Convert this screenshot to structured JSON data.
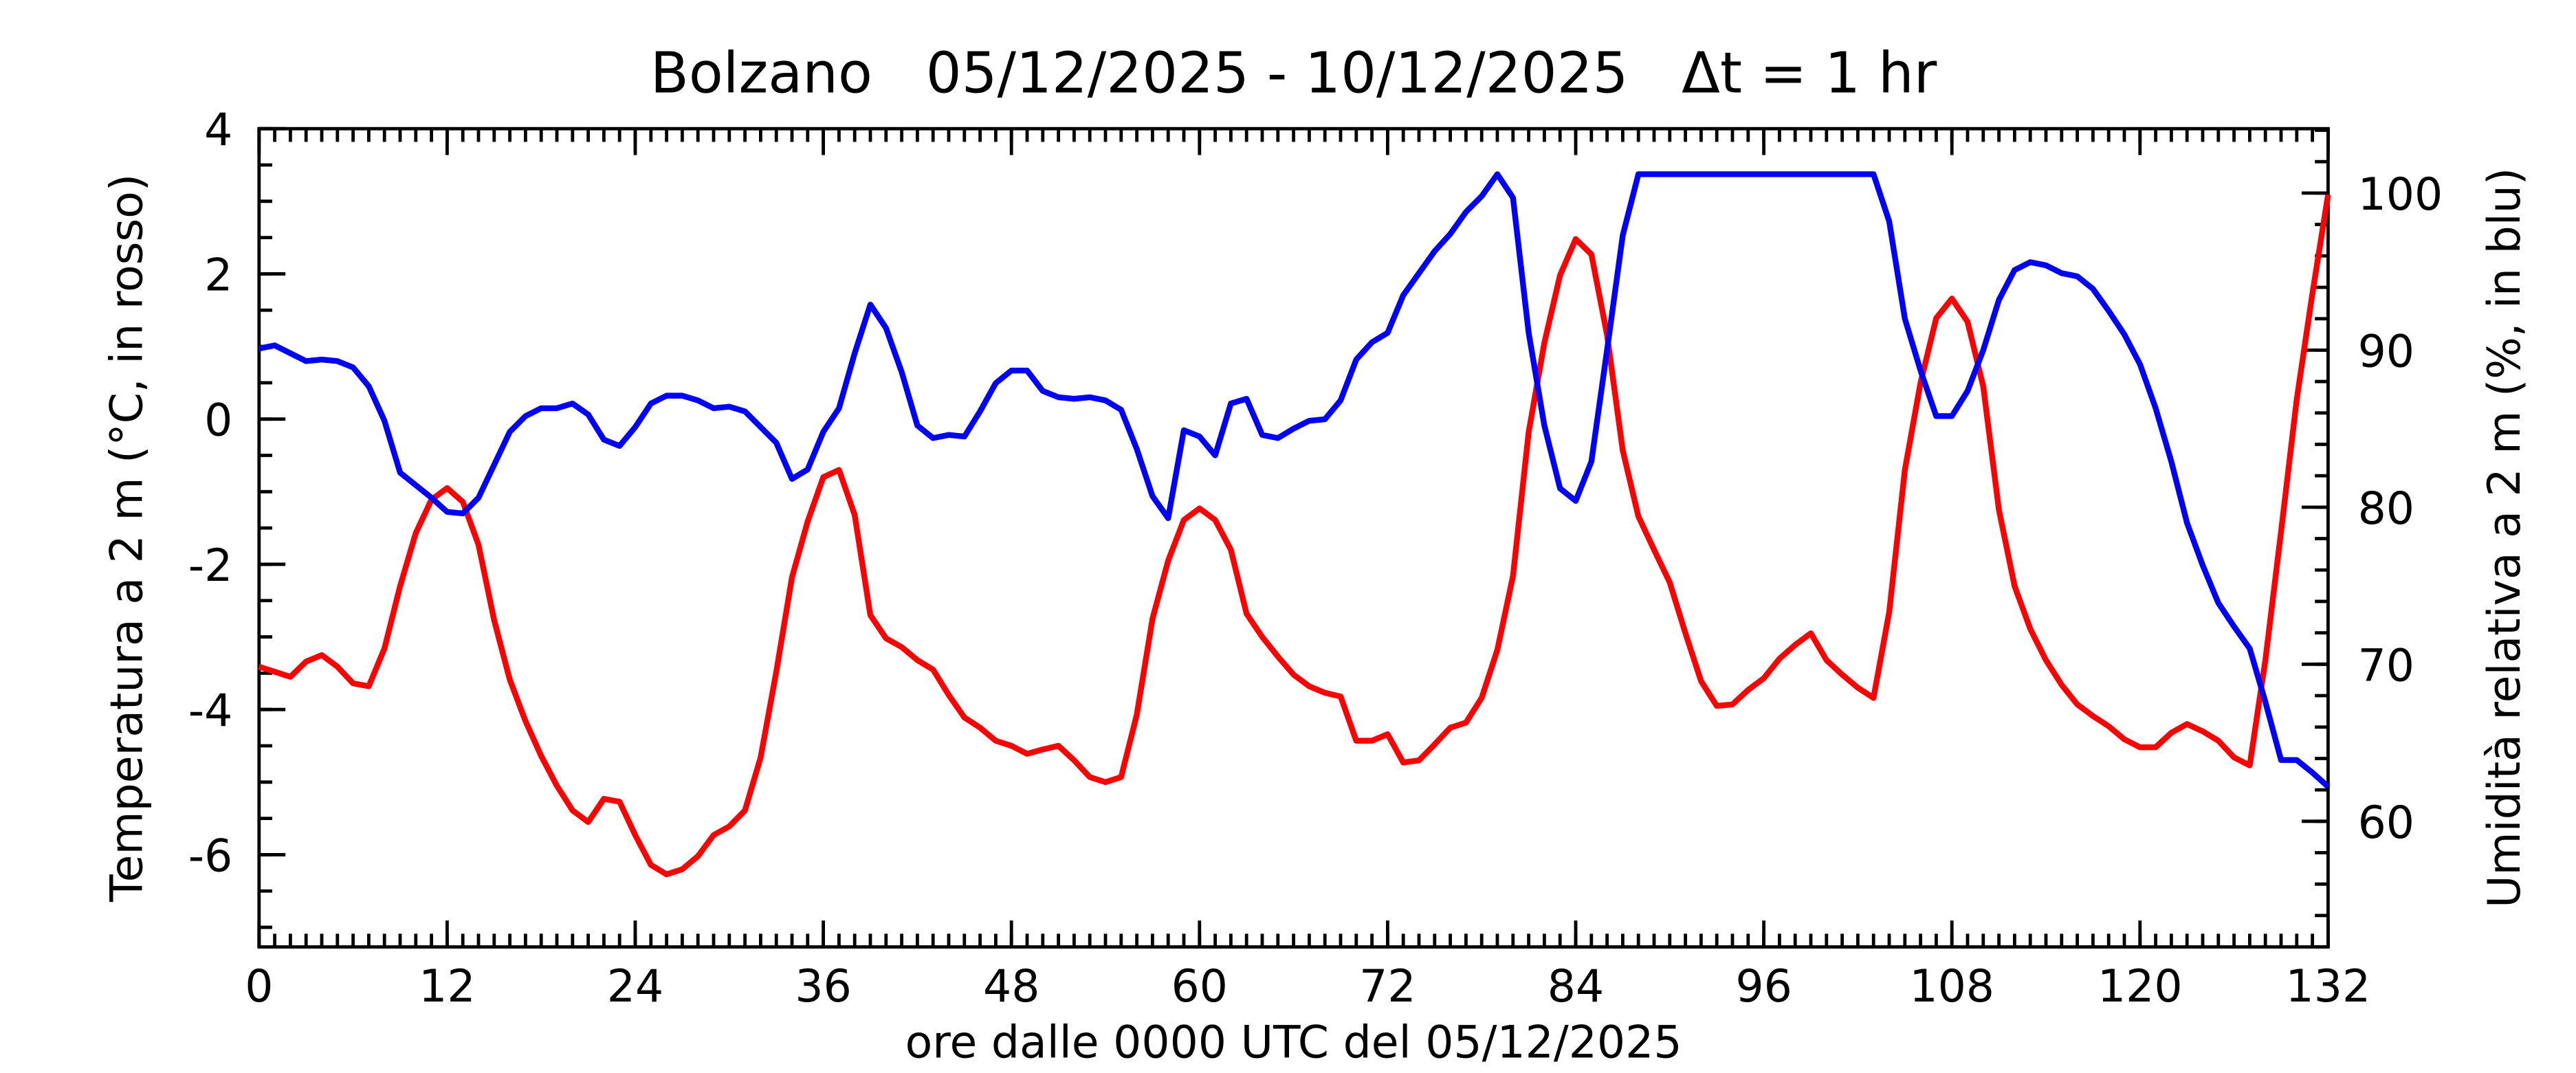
{
  "chart_data": {
    "type": "line",
    "title": "Bolzano   05/12/2025 - 10/12/2025   Δt = 1 hr",
    "xlabel": "ore dalle 0000 UTC del 05/12/2025",
    "ylabel": "Temperatura a 2 m (°C, in rosso)",
    "y2label": "Umidità relativa a 2 m (%, in blu)",
    "x": [
      0,
      1,
      2,
      3,
      4,
      5,
      6,
      7,
      8,
      9,
      10,
      11,
      12,
      13,
      14,
      15,
      16,
      17,
      18,
      19,
      20,
      21,
      22,
      23,
      24,
      25,
      26,
      27,
      28,
      29,
      30,
      31,
      32,
      33,
      34,
      35,
      36,
      37,
      38,
      39,
      40,
      41,
      42,
      43,
      44,
      45,
      46,
      47,
      48,
      49,
      50,
      51,
      52,
      53,
      54,
      55,
      56,
      57,
      58,
      59,
      60,
      61,
      62,
      63,
      64,
      65,
      66,
      67,
      68,
      69,
      70,
      71,
      72,
      73,
      74,
      75,
      76,
      77,
      78,
      79,
      80,
      81,
      82,
      83,
      84,
      85,
      86,
      87,
      88,
      89,
      90,
      91,
      92,
      93,
      94,
      95,
      96,
      97,
      98,
      99,
      100,
      101,
      102,
      103,
      104,
      105,
      106,
      107,
      108,
      109,
      110,
      111,
      112,
      113,
      114,
      115,
      116,
      117,
      118,
      119,
      120,
      121,
      122,
      123,
      124,
      125,
      126,
      127,
      128,
      129,
      130,
      131,
      132
    ],
    "series": [
      {
        "color": "#ff0000",
        "values": [
          -3.41,
          -3.48,
          -3.55,
          -3.34,
          -3.25,
          -3.41,
          -3.64,
          -3.68,
          -3.16,
          -2.3,
          -1.57,
          -1.11,
          -0.95,
          -1.14,
          -1.73,
          -2.77,
          -3.59,
          -4.16,
          -4.64,
          -5.05,
          -5.39,
          -5.55,
          -5.23,
          -5.27,
          -5.73,
          -6.14,
          -6.27,
          -6.2,
          -6.02,
          -5.73,
          -5.61,
          -5.39,
          -4.66,
          -3.48,
          -2.18,
          -1.41,
          -0.8,
          -0.7,
          -1.32,
          -2.7,
          -3.02,
          -3.14,
          -3.32,
          -3.45,
          -3.8,
          -4.11,
          -4.25,
          -4.43,
          -4.5,
          -4.61,
          -4.55,
          -4.5,
          -4.7,
          -4.93,
          -5.0,
          -4.93,
          -4.07,
          -2.75,
          -1.95,
          -1.39,
          -1.23,
          -1.39,
          -1.8,
          -2.68,
          -3.0,
          -3.27,
          -3.52,
          -3.68,
          -3.77,
          -3.82,
          -4.43,
          -4.43,
          -4.34,
          -4.73,
          -4.7,
          -4.48,
          -4.25,
          -4.18,
          -3.84,
          -3.18,
          -2.16,
          -0.18,
          1.05,
          1.98,
          2.48,
          2.27,
          1.16,
          -0.43,
          -1.34,
          -1.8,
          -2.25,
          -2.95,
          -3.61,
          -3.95,
          -3.93,
          -3.73,
          -3.57,
          -3.3,
          -3.11,
          -2.95,
          -3.32,
          -3.52,
          -3.7,
          -3.84,
          -2.66,
          -0.7,
          0.5,
          1.39,
          1.66,
          1.34,
          0.45,
          -1.25,
          -2.3,
          -2.89,
          -3.32,
          -3.66,
          -3.93,
          -4.09,
          -4.23,
          -4.41,
          -4.52,
          -4.52,
          -4.32,
          -4.2,
          -4.3,
          -4.43,
          -4.66,
          -4.77,
          -3.32,
          -1.55,
          0.27,
          1.73,
          3.09
        ]
      },
      {
        "color": "#0000ff",
        "axis": "y2",
        "values": [
          90.1,
          90.3,
          89.8,
          89.3,
          89.4,
          89.3,
          88.9,
          87.7,
          85.5,
          82.2,
          81.4,
          80.6,
          79.7,
          79.6,
          80.6,
          82.7,
          84.8,
          85.8,
          86.3,
          86.3,
          86.6,
          85.9,
          84.3,
          83.9,
          85.1,
          86.6,
          87.1,
          87.1,
          86.8,
          86.3,
          86.4,
          86.1,
          85.1,
          84.1,
          81.8,
          82.4,
          84.8,
          86.3,
          89.8,
          92.9,
          91.4,
          88.6,
          85.2,
          84.4,
          84.6,
          84.5,
          86.1,
          87.9,
          88.7,
          88.7,
          87.4,
          87.0,
          86.9,
          87.0,
          86.8,
          86.2,
          83.7,
          80.7,
          79.3,
          84.9,
          84.5,
          83.3,
          86.6,
          86.9,
          84.6,
          84.4,
          85.0,
          85.5,
          85.6,
          86.8,
          89.4,
          90.5,
          91.1,
          93.5,
          94.9,
          96.3,
          97.4,
          98.8,
          99.8,
          101.2,
          99.7,
          91.1,
          85.2,
          81.2,
          80.4,
          82.9,
          90.0,
          97.3,
          101.2,
          101.2,
          101.2,
          101.2,
          101.2,
          101.2,
          101.2,
          101.2,
          101.2,
          101.2,
          101.2,
          101.2,
          101.2,
          101.2,
          101.2,
          101.2,
          98.2,
          92.0,
          88.7,
          85.8,
          85.8,
          87.4,
          90.0,
          93.2,
          95.1,
          95.6,
          95.4,
          94.9,
          94.7,
          93.9,
          92.5,
          91.0,
          89.1,
          86.3,
          82.9,
          79.0,
          76.3,
          73.9,
          72.4,
          71.0,
          67.6,
          63.9,
          63.9,
          63.1,
          62.2
        ]
      }
    ],
    "xlim": [
      0,
      132
    ],
    "xticks": [
      0,
      12,
      24,
      36,
      48,
      60,
      72,
      84,
      96,
      108,
      120,
      132
    ],
    "ylim": [
      -7.27,
      4
    ],
    "yticks": [
      -6,
      -4,
      -2,
      0,
      2,
      4
    ],
    "y2lim": [
      52,
      104.1
    ],
    "y2ticks": [
      60,
      70,
      80,
      90,
      100
    ]
  }
}
